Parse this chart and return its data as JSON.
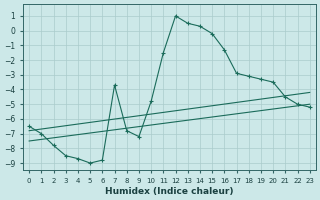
{
  "xlabel": "Humidex (Indice chaleur)",
  "background_color": "#cce8e8",
  "grid_color": "#aacccc",
  "line_color": "#1a6b5a",
  "xlim": [
    -0.5,
    23.5
  ],
  "ylim": [
    -9.5,
    1.8
  ],
  "xticks": [
    0,
    1,
    2,
    3,
    4,
    5,
    6,
    7,
    8,
    9,
    10,
    11,
    12,
    13,
    14,
    15,
    16,
    17,
    18,
    19,
    20,
    21,
    22,
    23
  ],
  "yticks": [
    1,
    0,
    -1,
    -2,
    -3,
    -4,
    -5,
    -6,
    -7,
    -8,
    -9
  ],
  "main_x": [
    0,
    1,
    2,
    3,
    4,
    5,
    6,
    7,
    8,
    9,
    10,
    11,
    12,
    13,
    14,
    15,
    16,
    17,
    18,
    19,
    20,
    21,
    22,
    23
  ],
  "main_y": [
    -6.5,
    -7.0,
    -7.8,
    -8.5,
    -8.7,
    -9.0,
    -8.8,
    -3.7,
    -6.8,
    -7.2,
    -4.8,
    -1.5,
    1.0,
    0.5,
    0.3,
    -0.2,
    -1.3,
    -2.9,
    -3.1,
    -3.3,
    -3.5,
    -4.5,
    -5.0,
    -5.2
  ],
  "line1_x": [
    0,
    23
  ],
  "line1_y": [
    -6.8,
    -4.2
  ],
  "line2_x": [
    0,
    23
  ],
  "line2_y": [
    -7.5,
    -5.0
  ]
}
